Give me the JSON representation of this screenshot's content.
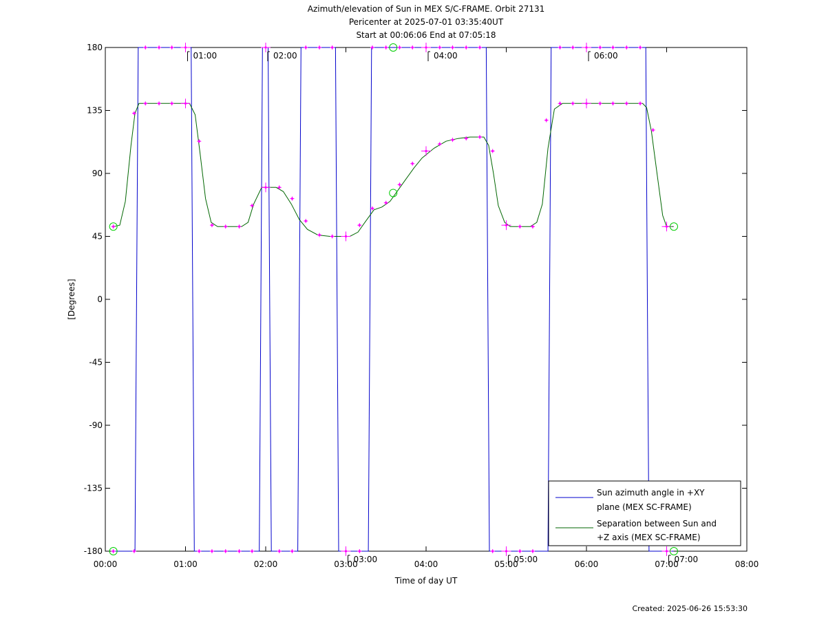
{
  "chart_data": {
    "type": "line",
    "title_lines": [
      "Azimuth/elevation of Sun in MEX S/C-FRAME.  Orbit 27131",
      "Pericenter at 2025-07-01 03:35:40UT",
      "Start at 00:06:06 End at 07:05:18"
    ],
    "xlabel": "Time of day UT",
    "ylabel": "[Degrees]",
    "xlim": [
      0,
      8
    ],
    "ylim": [
      -180,
      180
    ],
    "x_ticks": [
      {
        "v": 0,
        "label": "00:00"
      },
      {
        "v": 1,
        "label": "01:00"
      },
      {
        "v": 2,
        "label": "02:00"
      },
      {
        "v": 3,
        "label": "03:00"
      },
      {
        "v": 4,
        "label": "04:00"
      },
      {
        "v": 5,
        "label": "05:00"
      },
      {
        "v": 6,
        "label": "06:00"
      },
      {
        "v": 7,
        "label": "07:00"
      },
      {
        "v": 8,
        "label": "08:00"
      }
    ],
    "y_ticks": [
      {
        "v": 180,
        "label": "180"
      },
      {
        "v": 135,
        "label": "135"
      },
      {
        "v": 90,
        "label": "90"
      },
      {
        "v": 45,
        "label": "45"
      },
      {
        "v": 0,
        "label": "0"
      },
      {
        "v": -45,
        "label": "-45"
      },
      {
        "v": -90,
        "label": "-90"
      },
      {
        "v": -135,
        "label": "-135"
      },
      {
        "v": -180,
        "label": "-180"
      }
    ],
    "hour_marks": [
      {
        "x": 1.0,
        "y": 180,
        "label": "01:00"
      },
      {
        "x": 2.0,
        "y": 180,
        "label": "02:00"
      },
      {
        "x": 3.0,
        "y": -180,
        "label": "03:00"
      },
      {
        "x": 4.0,
        "y": 180,
        "label": "04:00"
      },
      {
        "x": 5.0,
        "y": -180,
        "label": "05:00"
      },
      {
        "x": 6.0,
        "y": 180,
        "label": "06:00"
      },
      {
        "x": 7.0,
        "y": -180,
        "label": "07:00"
      }
    ],
    "series": [
      {
        "name": "Sun azimuth angle in +XY plane (MEX SC-FRAME)",
        "legend_lines": [
          "Sun azimuth angle in +XY",
          "plane (MEX SC-FRAME)"
        ],
        "color": "#0000cc",
        "x": [
          0.102,
          0.37,
          0.39,
          0.41,
          1.07,
          1.09,
          1.11,
          1.92,
          1.94,
          1.96,
          2.03,
          2.05,
          2.07,
          2.4,
          2.42,
          2.44,
          2.87,
          2.89,
          2.91,
          3.28,
          3.3,
          3.32,
          4.75,
          4.77,
          4.79,
          5.52,
          5.54,
          5.56,
          6.74,
          6.76,
          6.78,
          7.088
        ],
        "y": [
          -180,
          -180,
          0,
          180,
          180,
          0,
          -180,
          -180,
          0,
          180,
          180,
          0,
          -180,
          -180,
          0,
          180,
          180,
          0,
          -180,
          -180,
          0,
          180,
          180,
          0,
          -180,
          -180,
          0,
          180,
          180,
          0,
          -180,
          -180
        ]
      },
      {
        "name": "Separation between Sun and +Z axis (MEX SC-FRAME)",
        "legend_lines": [
          "Separation between Sun and",
          "+Z axis (MEX SC-FRAME)"
        ],
        "color": "#006600",
        "x": [
          0.102,
          0.18,
          0.25,
          0.32,
          0.37,
          0.42,
          1.05,
          1.12,
          1.18,
          1.25,
          1.32,
          1.4,
          1.7,
          1.78,
          1.85,
          1.95,
          2.13,
          2.22,
          2.32,
          2.42,
          2.52,
          2.65,
          2.8,
          3.05,
          3.15,
          3.25,
          3.35,
          3.45,
          3.55,
          3.65,
          3.75,
          3.85,
          3.95,
          4.1,
          4.25,
          4.4,
          4.55,
          4.72,
          4.78,
          4.84,
          4.9,
          4.98,
          5.05,
          5.3,
          5.38,
          5.45,
          5.52,
          5.6,
          5.7,
          6.7,
          6.75,
          6.81,
          6.88,
          6.95,
          7.0,
          7.088
        ],
        "y": [
          52,
          53,
          70,
          110,
          133,
          140,
          140,
          132,
          105,
          72,
          55,
          52,
          52,
          55,
          68,
          80,
          80,
          77,
          68,
          57,
          50,
          46,
          45,
          45,
          48,
          56,
          64,
          66,
          70,
          78,
          86,
          94,
          101,
          108,
          113,
          115,
          116,
          116,
          110,
          90,
          67,
          55,
          52,
          52,
          55,
          68,
          108,
          136,
          140,
          140,
          137,
          120,
          90,
          60,
          52,
          52
        ]
      }
    ],
    "markers": [
      {
        "x": 0.1,
        "y": 52
      },
      {
        "x": 0.36,
        "y": 133
      },
      {
        "x": 0.5,
        "y": 140
      },
      {
        "x": 0.67,
        "y": 140
      },
      {
        "x": 0.83,
        "y": 140
      },
      {
        "x": 1.0,
        "y": 140
      },
      {
        "x": 1.17,
        "y": 113
      },
      {
        "x": 1.33,
        "y": 53
      },
      {
        "x": 1.5,
        "y": 52
      },
      {
        "x": 1.67,
        "y": 52
      },
      {
        "x": 1.83,
        "y": 67
      },
      {
        "x": 2.0,
        "y": 80
      },
      {
        "x": 2.17,
        "y": 80
      },
      {
        "x": 2.33,
        "y": 72
      },
      {
        "x": 2.5,
        "y": 56
      },
      {
        "x": 2.67,
        "y": 46
      },
      {
        "x": 2.83,
        "y": 45
      },
      {
        "x": 3.0,
        "y": 45
      },
      {
        "x": 3.17,
        "y": 53
      },
      {
        "x": 3.33,
        "y": 65
      },
      {
        "x": 3.5,
        "y": 69
      },
      {
        "x": 3.67,
        "y": 82
      },
      {
        "x": 3.83,
        "y": 97
      },
      {
        "x": 4.0,
        "y": 106
      },
      {
        "x": 4.17,
        "y": 111
      },
      {
        "x": 4.33,
        "y": 114
      },
      {
        "x": 4.5,
        "y": 115
      },
      {
        "x": 4.67,
        "y": 116
      },
      {
        "x": 4.83,
        "y": 106
      },
      {
        "x": 5.0,
        "y": 53
      },
      {
        "x": 5.17,
        "y": 52
      },
      {
        "x": 5.33,
        "y": 52
      },
      {
        "x": 5.5,
        "y": 128
      },
      {
        "x": 5.67,
        "y": 140
      },
      {
        "x": 5.83,
        "y": 140
      },
      {
        "x": 6.0,
        "y": 140
      },
      {
        "x": 6.17,
        "y": 140
      },
      {
        "x": 6.33,
        "y": 140
      },
      {
        "x": 6.5,
        "y": 140
      },
      {
        "x": 6.67,
        "y": 140
      },
      {
        "x": 6.83,
        "y": 121
      },
      {
        "x": 7.0,
        "y": 52
      },
      {
        "x": 0.1,
        "y": -180
      },
      {
        "x": 0.36,
        "y": -180
      },
      {
        "x": 0.5,
        "y": 180
      },
      {
        "x": 0.67,
        "y": 180
      },
      {
        "x": 0.83,
        "y": 180
      },
      {
        "x": 1.0,
        "y": 180
      },
      {
        "x": 1.17,
        "y": -180
      },
      {
        "x": 1.33,
        "y": -180
      },
      {
        "x": 1.5,
        "y": -180
      },
      {
        "x": 1.67,
        "y": -180
      },
      {
        "x": 1.83,
        "y": -180
      },
      {
        "x": 2.0,
        "y": 180
      },
      {
        "x": 2.17,
        "y": -180
      },
      {
        "x": 2.33,
        "y": -180
      },
      {
        "x": 2.5,
        "y": 180
      },
      {
        "x": 2.67,
        "y": 180
      },
      {
        "x": 2.83,
        "y": 180
      },
      {
        "x": 3.0,
        "y": -180
      },
      {
        "x": 3.17,
        "y": -180
      },
      {
        "x": 3.33,
        "y": 180
      },
      {
        "x": 3.5,
        "y": 180
      },
      {
        "x": 3.67,
        "y": 180
      },
      {
        "x": 3.83,
        "y": 180
      },
      {
        "x": 4.0,
        "y": 180
      },
      {
        "x": 4.17,
        "y": 180
      },
      {
        "x": 4.33,
        "y": 180
      },
      {
        "x": 4.5,
        "y": 180
      },
      {
        "x": 4.67,
        "y": 180
      },
      {
        "x": 4.83,
        "y": -180
      },
      {
        "x": 5.0,
        "y": -180
      },
      {
        "x": 5.17,
        "y": -180
      },
      {
        "x": 5.33,
        "y": -180
      },
      {
        "x": 5.67,
        "y": 180
      },
      {
        "x": 5.83,
        "y": 180
      },
      {
        "x": 6.0,
        "y": 180
      },
      {
        "x": 6.17,
        "y": 180
      },
      {
        "x": 6.33,
        "y": 180
      },
      {
        "x": 6.5,
        "y": 180
      },
      {
        "x": 6.67,
        "y": 180
      },
      {
        "x": 7.0,
        "y": -180
      }
    ],
    "hour_crosses": [
      {
        "x": 1.0,
        "y": 140
      },
      {
        "x": 2.0,
        "y": 80
      },
      {
        "x": 3.0,
        "y": 45
      },
      {
        "x": 4.0,
        "y": 106
      },
      {
        "x": 5.0,
        "y": 53
      },
      {
        "x": 6.0,
        "y": 140
      },
      {
        "x": 7.0,
        "y": 52
      },
      {
        "x": 1.0,
        "y": 180
      },
      {
        "x": 2.0,
        "y": 180
      },
      {
        "x": 3.0,
        "y": -180
      },
      {
        "x": 4.0,
        "y": 180
      },
      {
        "x": 5.0,
        "y": -180
      },
      {
        "x": 6.0,
        "y": 180
      },
      {
        "x": 7.0,
        "y": -180
      }
    ],
    "circle_marks": [
      {
        "x": 0.1,
        "y": 52
      },
      {
        "x": 3.59,
        "y": 76
      },
      {
        "x": 7.09,
        "y": 52
      },
      {
        "x": 0.1,
        "y": -180
      },
      {
        "x": 3.59,
        "y": 180
      },
      {
        "x": 7.09,
        "y": -180
      }
    ],
    "legend_position": "bottom-right",
    "grid": false,
    "colors": {
      "markers": "#ff00ff",
      "circles": "#00cc00",
      "axes": "#000000"
    }
  },
  "footer": {
    "created": "Created: 2025-06-26 15:53:30"
  }
}
